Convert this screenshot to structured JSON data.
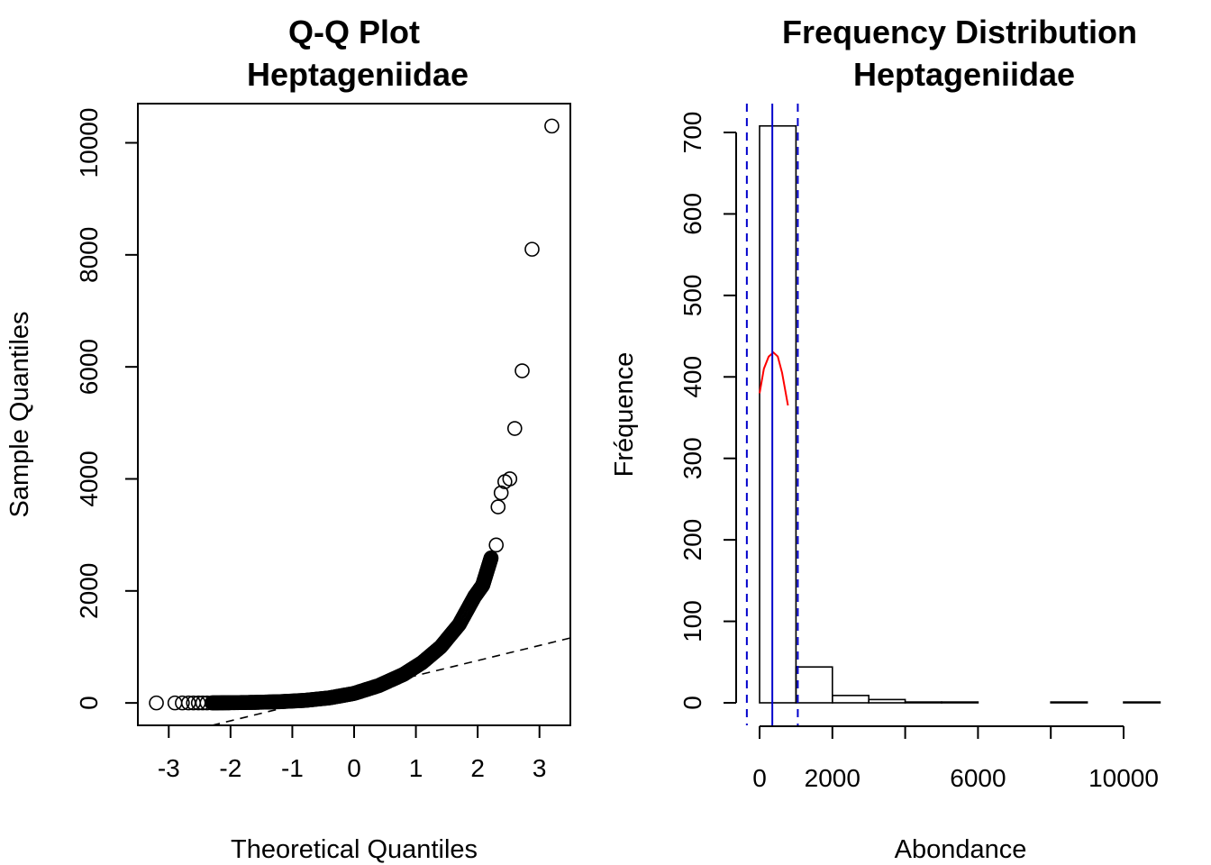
{
  "chart_data": [
    {
      "type": "scatter",
      "title": [
        "Q-Q Plot",
        "Heptageniidae"
      ],
      "xlabel": "Theoretical Quantiles",
      "ylabel": "Sample Quantiles",
      "xlim": [
        -3.5,
        3.5
      ],
      "ylim": [
        -400,
        10700
      ],
      "x_ticks": [
        -3,
        -2,
        -1,
        0,
        1,
        2,
        3
      ],
      "x_tick_labels": [
        "-3",
        "-2",
        "-1",
        "0",
        "1",
        "2",
        "3"
      ],
      "y_ticks": [
        0,
        2000,
        4000,
        6000,
        8000,
        10000
      ],
      "y_tick_labels": [
        "0",
        "2000",
        "4000",
        "6000",
        "8000",
        "10000"
      ],
      "reference_line": {
        "style": "dashed",
        "points": [
          [
            -2.3,
            -400
          ],
          [
            3.5,
            1160
          ]
        ]
      },
      "points": [
        [
          -3.2,
          0
        ],
        [
          -2.9,
          0
        ],
        [
          -2.78,
          0
        ],
        [
          -2.68,
          0
        ],
        [
          -2.6,
          0
        ],
        [
          -2.52,
          0
        ],
        [
          -2.45,
          0
        ],
        [
          -2.38,
          0
        ],
        [
          2.3,
          2820
        ],
        [
          2.33,
          3500
        ],
        [
          2.38,
          3750
        ],
        [
          2.44,
          3950
        ],
        [
          2.52,
          4000
        ],
        [
          2.6,
          4900
        ],
        [
          2.72,
          5930
        ],
        [
          2.88,
          8100
        ],
        [
          3.2,
          10300
        ]
      ],
      "curve_tail": [
        [
          -2.3,
          1
        ],
        [
          -2.0,
          4
        ],
        [
          -1.6,
          10
        ],
        [
          -1.2,
          22
        ],
        [
          -0.8,
          45
        ],
        [
          -0.4,
          90
        ],
        [
          0,
          170
        ],
        [
          0.4,
          310
        ],
        [
          0.8,
          510
        ],
        [
          1.1,
          720
        ],
        [
          1.4,
          1000
        ],
        [
          1.7,
          1400
        ],
        [
          1.95,
          1900
        ],
        [
          2.08,
          2100
        ],
        [
          2.15,
          2350
        ],
        [
          2.22,
          2600
        ]
      ]
    },
    {
      "type": "bar",
      "title": [
        "Frequency Distribution",
        "Heptageniidae"
      ],
      "xlabel": "Abondance",
      "ylabel": "Fréquence",
      "xlim": [
        -500,
        11000
      ],
      "ylim": [
        -30,
        730
      ],
      "x_ticks": [
        0,
        2000,
        4000,
        6000,
        8000,
        10000
      ],
      "x_tick_labels": [
        "0",
        "2000",
        "",
        "6000",
        "",
        "10000"
      ],
      "y_ticks": [
        0,
        100,
        200,
        300,
        400,
        500,
        600,
        700
      ],
      "y_tick_labels": [
        "0",
        "100",
        "200",
        "300",
        "400",
        "500",
        "600",
        "700"
      ],
      "bins": [
        [
          0,
          1000,
          708
        ],
        [
          1000,
          2000,
          44
        ],
        [
          2000,
          3000,
          9
        ],
        [
          3000,
          4000,
          4
        ],
        [
          4000,
          5000,
          1
        ],
        [
          5000,
          6000,
          1
        ],
        [
          6000,
          7000,
          0
        ],
        [
          7000,
          8000,
          0
        ],
        [
          8000,
          9000,
          1
        ],
        [
          9000,
          10000,
          0
        ],
        [
          10000,
          11000,
          1
        ]
      ],
      "density_curve": {
        "color": "#ff0000",
        "points": [
          [
            0,
            380
          ],
          [
            120,
            410
          ],
          [
            250,
            425
          ],
          [
            380,
            430
          ],
          [
            500,
            425
          ],
          [
            620,
            405
          ],
          [
            780,
            365
          ]
        ]
      },
      "vlines": [
        {
          "x": 350,
          "color": "#0000cc",
          "style": "solid"
        },
        {
          "x": -350,
          "color": "#0000cc",
          "style": "dashed"
        },
        {
          "x": 1050,
          "color": "#0000cc",
          "style": "dashed"
        }
      ]
    }
  ]
}
